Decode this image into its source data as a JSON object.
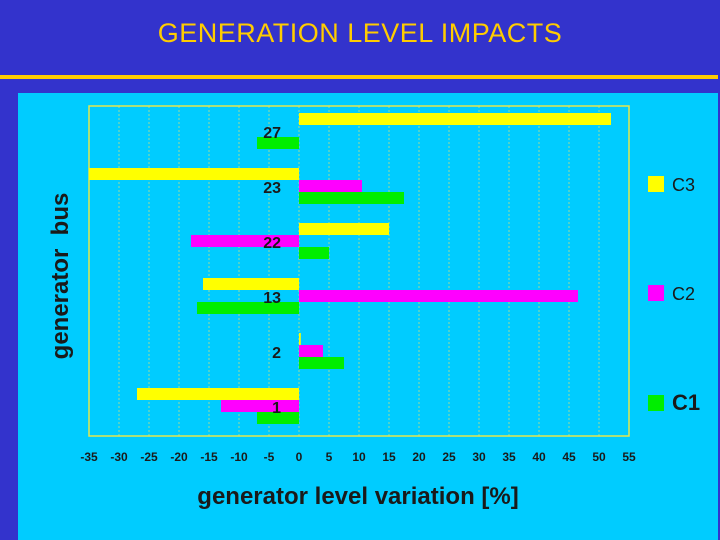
{
  "slide": {
    "title": "GENERATION LEVEL IMPACTS"
  },
  "colors": {
    "background": "#3333cc",
    "accent": "#ffcc00",
    "panel": "#00ccff",
    "plot_border": "#e6e64d"
  },
  "chart_data": {
    "type": "bar",
    "orientation": "horizontal",
    "categories": [
      "27",
      "23",
      "22",
      "13",
      "2",
      "1"
    ],
    "series": [
      {
        "name": "C3",
        "color": "#ffff00",
        "values": [
          52,
          -35,
          15,
          -16,
          0.3,
          -27
        ]
      },
      {
        "name": "C2",
        "color": "#ff00ff",
        "values": [
          0,
          10.5,
          -18,
          46.5,
          4,
          -13
        ]
      },
      {
        "name": "C1",
        "color": "#00ee00",
        "values": [
          -7,
          17.5,
          5,
          -17,
          7.5,
          -7
        ]
      }
    ],
    "xlabel": "generator level variation [%]",
    "ylabel": "generator  bus",
    "xlim": [
      -35,
      55
    ],
    "xticks": [
      -35,
      -30,
      -25,
      -20,
      -15,
      -10,
      -5,
      0,
      5,
      10,
      15,
      20,
      25,
      30,
      35,
      40,
      45,
      50,
      55
    ],
    "grid": true,
    "legend": "right"
  }
}
